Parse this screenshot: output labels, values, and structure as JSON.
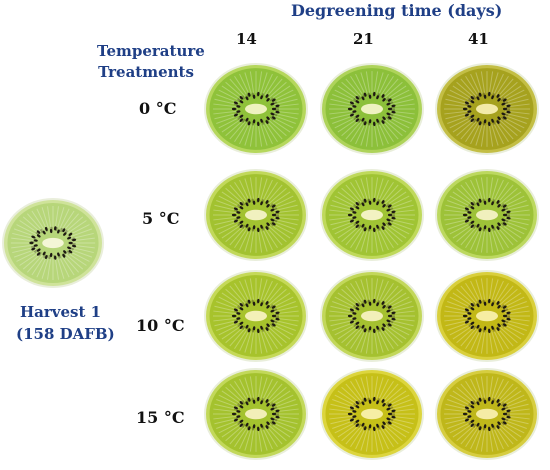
{
  "header": {
    "axis_title": "Degreening time (days)",
    "days": [
      "14",
      "21",
      "41"
    ]
  },
  "rows_title": "Temperature Treatments",
  "treatments": [
    {
      "label": "0 °C",
      "fruit": [
        {
          "flesh": "#8fc23a",
          "rim": "#b5d75c",
          "core": "#eef2bf"
        },
        {
          "flesh": "#8cc03a",
          "rim": "#aed35a",
          "core": "#eef2c0"
        },
        {
          "flesh": "#a6a21e",
          "rim": "#c3be45",
          "core": "#f2eaa8"
        }
      ]
    },
    {
      "label": "5 °C",
      "fruit": [
        {
          "flesh": "#a2c230",
          "rim": "#c1d85a",
          "core": "#f1f1bf"
        },
        {
          "flesh": "#a0c434",
          "rim": "#bfd95b",
          "core": "#f2f2c2"
        },
        {
          "flesh": "#9dc238",
          "rim": "#bcd85f",
          "core": "#f0f0bd"
        }
      ]
    },
    {
      "label": "10 °C",
      "fruit": [
        {
          "flesh": "#a7c32c",
          "rim": "#c5d958",
          "core": "#f3f0b8"
        },
        {
          "flesh": "#a5c130",
          "rim": "#c2d75a",
          "core": "#f2efb9"
        },
        {
          "flesh": "#c2b816",
          "rim": "#d9cf3c",
          "core": "#f6eda2"
        }
      ]
    },
    {
      "label": "15 °C",
      "fruit": [
        {
          "flesh": "#a4c22e",
          "rim": "#c2d85a",
          "core": "#f2efb8"
        },
        {
          "flesh": "#c6c018",
          "rim": "#dcd53e",
          "core": "#f6eea4"
        },
        {
          "flesh": "#bfb71a",
          "rim": "#d6cd40",
          "core": "#f5eca6"
        }
      ]
    }
  ],
  "harvest": {
    "line1": "Harvest 1",
    "line2": "(158 DAFB)",
    "fruit": {
      "flesh": "#b7d67a",
      "rim": "#cfe39a",
      "core": "#f4f6d6"
    }
  }
}
